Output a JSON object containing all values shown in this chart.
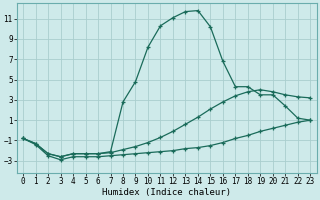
{
  "xlabel": "Humidex (Indice chaleur)",
  "xlim": [
    -0.5,
    23.5
  ],
  "ylim": [
    -4.2,
    12.5
  ],
  "yticks": [
    -3,
    -1,
    1,
    3,
    5,
    7,
    9,
    11
  ],
  "xticks": [
    0,
    1,
    2,
    3,
    4,
    5,
    6,
    7,
    8,
    9,
    10,
    11,
    12,
    13,
    14,
    15,
    16,
    17,
    18,
    19,
    20,
    21,
    22,
    23
  ],
  "bg_color": "#ceeaea",
  "grid_color": "#aacece",
  "line_color": "#1a6b5a",
  "line1_x": [
    0,
    1,
    2,
    3,
    4,
    5,
    6,
    7,
    8,
    9,
    10,
    11,
    12,
    13,
    14,
    15,
    16,
    17,
    18,
    19,
    20,
    21,
    22,
    23
  ],
  "line1_y": [
    -0.8,
    -1.4,
    -2.5,
    -2.9,
    -2.6,
    -2.6,
    -2.6,
    -2.5,
    -2.4,
    -2.3,
    -2.2,
    -2.1,
    -2.0,
    -1.8,
    -1.7,
    -1.5,
    -1.2,
    -0.8,
    -0.5,
    -0.1,
    0.2,
    0.5,
    0.8,
    1.0
  ],
  "line2_x": [
    0,
    1,
    2,
    3,
    4,
    5,
    6,
    7,
    8,
    9,
    10,
    11,
    12,
    13,
    14,
    15,
    16,
    17,
    18,
    19,
    20,
    21,
    22,
    23
  ],
  "line2_y": [
    -0.8,
    -1.3,
    -2.3,
    -2.6,
    -2.3,
    -2.3,
    -2.3,
    -2.2,
    -1.9,
    -1.6,
    -1.2,
    -0.7,
    -0.1,
    0.6,
    1.3,
    2.1,
    2.8,
    3.4,
    3.8,
    4.0,
    3.8,
    3.5,
    3.3,
    3.2
  ],
  "line3_x": [
    0,
    1,
    2,
    3,
    4,
    5,
    6,
    7,
    8,
    9,
    10,
    11,
    12,
    13,
    14,
    15,
    16,
    17,
    18,
    19,
    20,
    21,
    22,
    23
  ],
  "line3_y": [
    -0.8,
    -1.3,
    -2.3,
    -2.6,
    -2.3,
    -2.3,
    -2.3,
    -2.1,
    2.8,
    4.8,
    8.2,
    10.3,
    11.1,
    11.7,
    11.8,
    10.2,
    6.8,
    4.3,
    4.3,
    3.5,
    3.5,
    2.4,
    1.2,
    1.0
  ]
}
